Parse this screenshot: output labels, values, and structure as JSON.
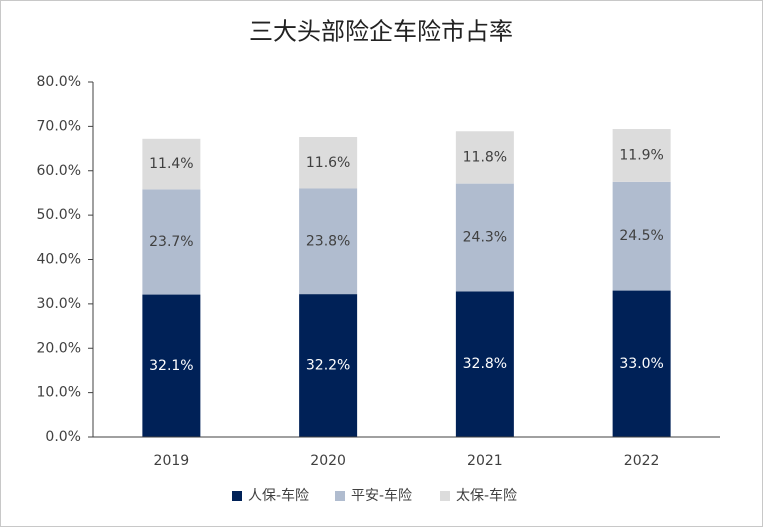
{
  "chart_data": {
    "type": "stacked-bar",
    "title": "三大头部险企车险市占率",
    "categories": [
      "2019",
      "2020",
      "2021",
      "2022"
    ],
    "series": [
      {
        "name": "人保-车险",
        "color": "#002157",
        "values": [
          32.1,
          32.2,
          32.8,
          33.0
        ],
        "value_labels": [
          "32.1%",
          "32.2%",
          "32.8%",
          "33.0%"
        ]
      },
      {
        "name": "平安-车险",
        "color": "#b0bccf",
        "values": [
          23.7,
          23.8,
          24.3,
          24.5
        ],
        "value_labels": [
          "23.7%",
          "23.8%",
          "24.3%",
          "24.5%"
        ]
      },
      {
        "name": "太保-车险",
        "color": "#dcdcdc",
        "values": [
          11.4,
          11.6,
          11.8,
          11.9
        ],
        "value_labels": [
          "11.4%",
          "11.6%",
          "11.8%",
          "11.9%"
        ]
      }
    ],
    "ylim": [
      0,
      80
    ],
    "yticks": [
      {
        "value": 0,
        "label": "0.0%"
      },
      {
        "value": 10,
        "label": "10.0%"
      },
      {
        "value": 20,
        "label": "20.0%"
      },
      {
        "value": 30,
        "label": "30.0%"
      },
      {
        "value": 40,
        "label": "40.0%"
      },
      {
        "value": 50,
        "label": "50.0%"
      },
      {
        "value": 60,
        "label": "60.0%"
      },
      {
        "value": 70,
        "label": "70.0%"
      },
      {
        "value": 80,
        "label": "80.0%"
      }
    ],
    "legend": "bottom"
  }
}
